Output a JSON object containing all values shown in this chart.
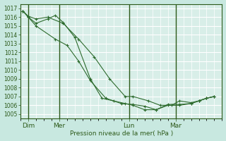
{
  "background_color": "#c8e8e0",
  "plot_bg_color": "#d8eee8",
  "grid_color": "#ffffff",
  "line_color": "#2d6b2d",
  "marker_color": "#2d6b2d",
  "xlabel_text": "Pression niveau de la mer( hPa )",
  "ylim": [
    1004.5,
    1017.5
  ],
  "yticks": [
    1005,
    1006,
    1007,
    1008,
    1009,
    1010,
    1011,
    1012,
    1013,
    1014,
    1015,
    1016,
    1017
  ],
  "xlim": [
    0,
    26
  ],
  "xtick_labels": [
    "Dim",
    "Mer",
    "Lun",
    "Mar"
  ],
  "xtick_positions": [
    1,
    5,
    14,
    20
  ],
  "vline_positions": [
    1,
    5,
    14,
    20
  ],
  "series": [
    {
      "x": [
        0.3,
        1.0,
        2.0,
        4.5,
        6.0,
        7.5,
        9.0,
        11.0,
        13.0,
        14.5,
        16.0,
        17.5,
        19.0,
        20.5,
        22.0,
        23.0,
        24.0,
        25.0
      ],
      "y": [
        1016.7,
        1016.0,
        1015.0,
        1013.5,
        1012.8,
        1011.0,
        1008.8,
        1006.8,
        1006.2,
        1006.1,
        1005.9,
        1005.5,
        1006.1,
        1006.1,
        1006.2,
        1006.5,
        1006.8,
        1007.0
      ]
    },
    {
      "x": [
        0.3,
        1.0,
        2.0,
        3.5,
        4.5,
        5.5,
        7.0,
        9.0,
        10.5,
        12.0,
        13.5,
        14.5,
        16.0,
        17.5,
        19.0,
        20.5,
        22.0,
        23.0,
        24.0,
        25.0
      ],
      "y": [
        1016.7,
        1016.0,
        1015.3,
        1015.8,
        1016.2,
        1015.4,
        1013.7,
        1009.0,
        1006.8,
        1006.5,
        1006.2,
        1006.0,
        1005.5,
        1005.5,
        1006.0,
        1006.0,
        1006.2,
        1006.5,
        1006.8,
        1007.0
      ]
    },
    {
      "x": [
        0.3,
        1.0,
        2.0,
        3.5,
        5.5,
        7.5,
        9.5,
        11.5,
        13.5,
        14.5,
        16.5,
        18.0,
        19.5,
        20.5,
        22.0,
        23.0,
        24.0,
        25.0
      ],
      "y": [
        1016.7,
        1016.1,
        1015.8,
        1016.0,
        1015.3,
        1013.5,
        1011.5,
        1009.0,
        1007.0,
        1007.0,
        1006.5,
        1006.0,
        1006.0,
        1006.5,
        1006.3,
        1006.5,
        1006.8,
        1007.0
      ]
    }
  ]
}
